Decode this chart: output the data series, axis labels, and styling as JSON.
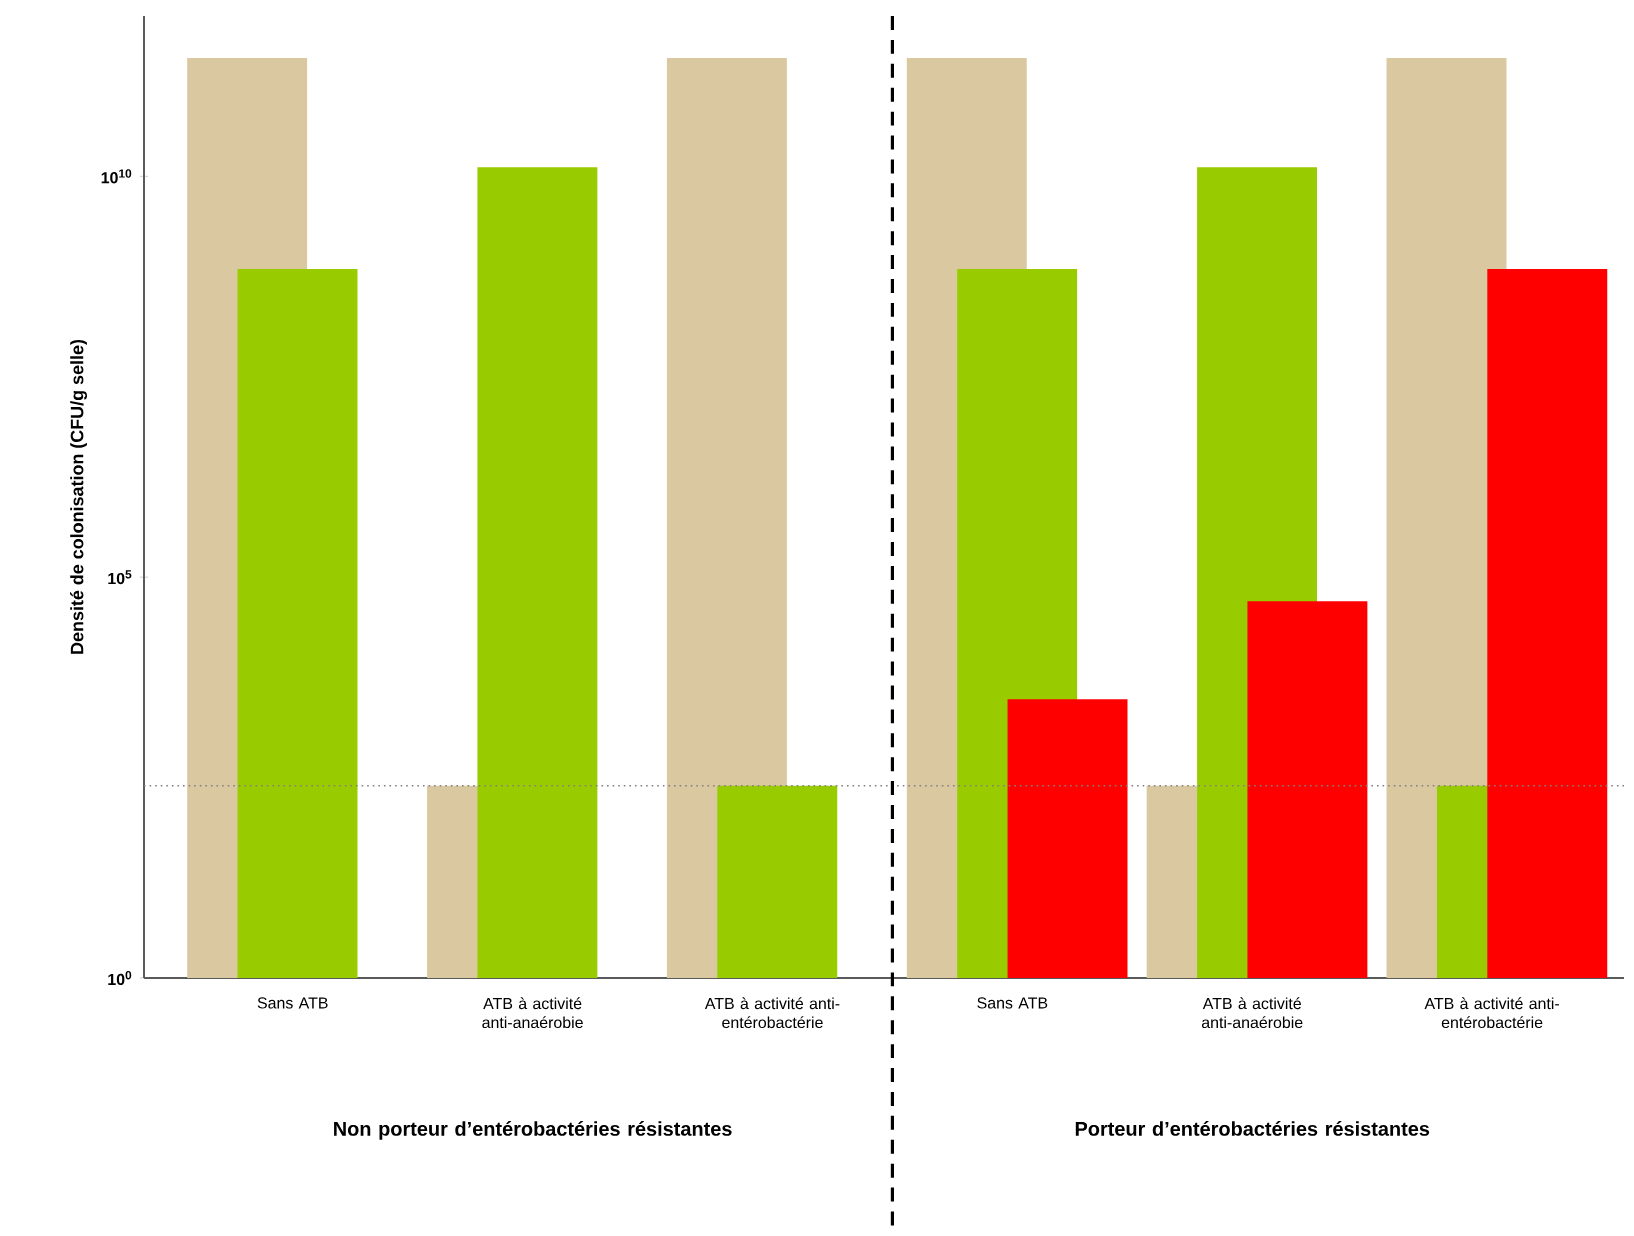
{
  "chart_data": {
    "type": "bar",
    "ylabel": "Densité de colonisation (CFU/g selle)",
    "categories": [
      "Sans ATB",
      "ATB à activité anti-anaérobie",
      "ATB à activité anti-entérobactérie",
      "Sans ATB",
      "ATB à activité anti-anaérobie",
      "ATB à activité anti-entérobactérie"
    ],
    "series": [
      {
        "color": "#d9c8a0",
        "values": [
          300000000000.0,
          250,
          300000000000.0,
          300000000000.0,
          250,
          300000000000.0
        ]
      },
      {
        "color": "#99cc00",
        "values": [
          700000000.0,
          13000000000.0,
          250,
          700000000.0,
          13000000000.0,
          250
        ]
      },
      {
        "color": "#ff0000",
        "values": [
          null,
          null,
          null,
          3000,
          50000,
          700000000.0
        ]
      }
    ],
    "log": "y",
    "ylim": [
      1,
      1000000000000.0
    ],
    "yticks": [
      {
        "value": 1,
        "label": "10$^{0}$"
      },
      {
        "value": 100000,
        "label": "10$^{5}$"
      },
      {
        "value": 10000000000,
        "label": "10$^{10}$"
      }
    ],
    "ref_lines": [
      {
        "axis": "y",
        "value": 250,
        "color": "#808080",
        "line_style": "dotted"
      }
    ],
    "annotations": [
      "Non porteur d’entérobactéries résistantes",
      "Porteur d’entérobactéries résistantes"
    ]
  }
}
